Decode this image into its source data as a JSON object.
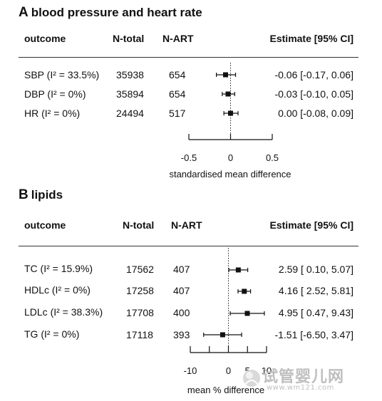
{
  "chart_data": [
    {
      "type": "forest",
      "panel_letter": "A",
      "title": "blood pressure and heart rate",
      "columns": [
        "outcome",
        "N-total",
        "N-ART",
        "Estimate [95% CI]"
      ],
      "rows": [
        {
          "outcome": "SBP (I² = 33.5%)",
          "n_total": "35938",
          "n_art": "654",
          "estimate_text": "-0.06 [-0.17, 0.06]",
          "est": -0.06,
          "lo": -0.17,
          "hi": 0.06
        },
        {
          "outcome": "DBP (I² = 0%)",
          "n_total": "35894",
          "n_art": "654",
          "estimate_text": "-0.03 [-0.10, 0.05]",
          "est": -0.03,
          "lo": -0.1,
          "hi": 0.05
        },
        {
          "outcome": "HR (I² = 0%)",
          "n_total": "24494",
          "n_art": "517",
          "estimate_text": "0.00 [-0.08, 0.09]",
          "est": 0.0,
          "lo": -0.08,
          "hi": 0.09
        }
      ],
      "xlim": [
        -0.5,
        0.5
      ],
      "xticks": [
        -0.5,
        0,
        0.5
      ],
      "xtick_labels": [
        "-0.5",
        "0",
        "0.5"
      ],
      "xlabel": "standardised mean difference",
      "reference_line": 0
    },
    {
      "type": "forest",
      "panel_letter": "B",
      "title": "lipids",
      "columns": [
        "outcome",
        "N-total",
        "N-ART",
        "Estimate [95% CI]"
      ],
      "rows": [
        {
          "outcome": "TC (I² = 15.9%)",
          "n_total": "17562",
          "n_art": "407",
          "estimate_text": "2.59 [ 0.10, 5.07]",
          "est": 2.59,
          "lo": 0.1,
          "hi": 5.07
        },
        {
          "outcome": "HDLc (I² = 0%)",
          "n_total": "17258",
          "n_art": "407",
          "estimate_text": "4.16 [ 2.52, 5.81]",
          "est": 4.16,
          "lo": 2.52,
          "hi": 5.81
        },
        {
          "outcome": "LDLc (I² = 38.3%)",
          "n_total": "17708",
          "n_art": "400",
          "estimate_text": "4.95 [ 0.47, 9.43]",
          "est": 4.95,
          "lo": 0.47,
          "hi": 9.43
        },
        {
          "outcome": "TG (I² = 0%)",
          "n_total": "17118",
          "n_art": "393",
          "estimate_text": "-1.51 [-6.50, 3.47]",
          "est": -1.51,
          "lo": -6.5,
          "hi": 3.47
        }
      ],
      "xlim": [
        -10,
        10
      ],
      "xticks": [
        -10,
        -5,
        0,
        5,
        10
      ],
      "xtick_labels": [
        "-10",
        "",
        "0",
        "5",
        "10"
      ],
      "xlabel": "mean % difference",
      "reference_line": 0
    }
  ],
  "watermark": {
    "text": "试管婴儿网",
    "url": "www.wm121.com"
  }
}
